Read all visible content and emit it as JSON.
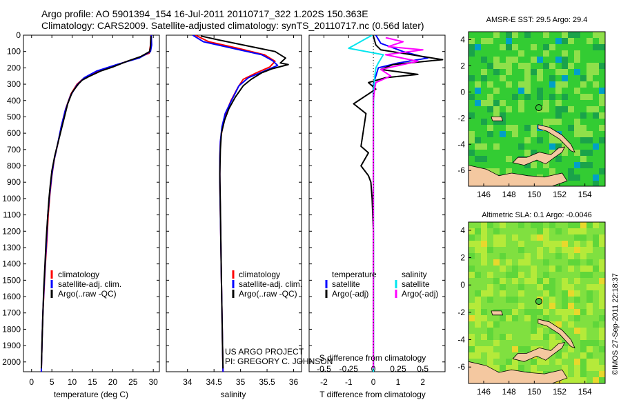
{
  "header": {
    "line1": "Argo profile: AO 5901394_154 16-Jul-2011 20110717_322 1.202S 150.363E",
    "line2": "Climatology: CARS2009. Satellite-adjusted climatology: synTS_20110717.nc (0.56d later)"
  },
  "colors": {
    "climatology": "#ff0000",
    "satellite": "#0000ff",
    "argo": "#000000",
    "sal_satellite": "#00e5ee",
    "sal_argo": "#ff00ff",
    "land": "#f4c8a0"
  },
  "chart_data": [
    {
      "type": "line",
      "title": "",
      "xlabel": "temperature (deg C)",
      "ylabel": "",
      "xlim": [
        -2,
        31.5
      ],
      "ylim": [
        2060,
        0
      ],
      "xticks": [
        "0",
        "5",
        "10",
        "15",
        "20",
        "25",
        "30"
      ],
      "xtick_values": [
        0,
        5,
        10,
        15,
        20,
        25,
        30
      ],
      "ytick_values": [
        0,
        100,
        200,
        300,
        400,
        500,
        600,
        700,
        800,
        900,
        1000,
        1100,
        1200,
        1300,
        1400,
        1500,
        1600,
        1700,
        1800,
        1900,
        2000
      ],
      "yticks": [
        "0",
        "100",
        "200",
        "300",
        "400",
        "500",
        "600",
        "700",
        "800",
        "900",
        "1000",
        "1100",
        "1200",
        "1300",
        "1400",
        "1500",
        "1600",
        "1700",
        "1800",
        "1900",
        "2000"
      ],
      "legend": [
        "climatology",
        "satellite-adj. clim.",
        "Argo(..raw -QC)"
      ],
      "series": [
        {
          "name": "climatology",
          "color": "#ff0000",
          "points": [
            [
              29.4,
              0
            ],
            [
              29.3,
              60
            ],
            [
              29.0,
              110
            ],
            [
              26,
              140
            ],
            [
              20,
              190
            ],
            [
              15,
              235
            ],
            [
              12.8,
              265
            ],
            [
              11.2,
              300
            ],
            [
              9.7,
              360
            ],
            [
              8.4,
              450
            ],
            [
              7.4,
              550
            ],
            [
              6.5,
              660
            ],
            [
              5.6,
              760
            ],
            [
              5.0,
              860
            ],
            [
              4.5,
              980
            ],
            [
              4.1,
              1100
            ],
            [
              3.8,
              1250
            ],
            [
              3.4,
              1400
            ],
            [
              3.1,
              1550
            ],
            [
              2.8,
              1700
            ],
            [
              2.6,
              1850
            ],
            [
              2.45,
              2000
            ],
            [
              2.4,
              2060
            ]
          ]
        },
        {
          "name": "satellite-adj. clim.",
          "color": "#0000ff",
          "points": [
            [
              29.5,
              0
            ],
            [
              29.6,
              60
            ],
            [
              29.3,
              100
            ],
            [
              26.5,
              140
            ],
            [
              21,
              180
            ],
            [
              16,
              220
            ],
            [
              13,
              260
            ],
            [
              11.2,
              305
            ],
            [
              9.6,
              370
            ],
            [
              8.3,
              460
            ],
            [
              7.3,
              560
            ],
            [
              6.4,
              670
            ],
            [
              5.5,
              770
            ],
            [
              4.9,
              870
            ],
            [
              4.4,
              990
            ],
            [
              4.0,
              1100
            ],
            [
              3.7,
              1250
            ],
            [
              3.35,
              1400
            ],
            [
              3.05,
              1550
            ],
            [
              2.8,
              1700
            ],
            [
              2.6,
              1850
            ],
            [
              2.45,
              2000
            ],
            [
              2.4,
              2060
            ]
          ]
        },
        {
          "name": "Argo(..raw -QC)",
          "color": "#000000",
          "points": [
            [
              29.4,
              5
            ],
            [
              29.3,
              70
            ],
            [
              29.1,
              100
            ],
            [
              27,
              130
            ],
            [
              23.5,
              160
            ],
            [
              20,
              195
            ],
            [
              17,
              220
            ],
            [
              14,
              255
            ],
            [
              12.5,
              275
            ],
            [
              11.5,
              300
            ],
            [
              10,
              350
            ],
            [
              8.9,
              420
            ],
            [
              8.2,
              490
            ],
            [
              7.3,
              580
            ],
            [
              6.5,
              660
            ],
            [
              5.7,
              740
            ],
            [
              5.0,
              830
            ],
            [
              4.6,
              920
            ],
            [
              4.3,
              1000
            ],
            [
              4.0,
              1100
            ],
            [
              3.6,
              1250
            ],
            [
              3.3,
              1400
            ],
            [
              3.0,
              1550
            ],
            [
              2.8,
              1700
            ],
            [
              2.6,
              1850
            ],
            [
              2.45,
              2000
            ],
            [
              2.4,
              2040
            ]
          ]
        }
      ]
    },
    {
      "type": "line",
      "title": "",
      "xlabel": "salinity",
      "ylabel": "",
      "xlim": [
        33.6,
        36.15
      ],
      "ylim": [
        2060,
        0
      ],
      "xticks": [
        "34",
        "34.5",
        "35",
        "35.5",
        "36"
      ],
      "xtick_values": [
        34,
        34.5,
        35,
        35.5,
        36
      ],
      "legend": [
        "climatology",
        "satellite-adj. clim.",
        "Argo(..raw -QC)"
      ],
      "series": [
        {
          "name": "climatology",
          "color": "#ff0000",
          "points": [
            [
              34.15,
              0
            ],
            [
              34.4,
              40
            ],
            [
              34.95,
              80
            ],
            [
              35.45,
              120
            ],
            [
              35.65,
              160
            ],
            [
              35.55,
              195
            ],
            [
              35.3,
              230
            ],
            [
              35.05,
              270
            ],
            [
              34.95,
              320
            ],
            [
              34.82,
              400
            ],
            [
              34.72,
              480
            ],
            [
              34.66,
              560
            ],
            [
              34.62,
              650
            ],
            [
              34.61,
              750
            ],
            [
              34.61,
              900
            ],
            [
              34.62,
              1100
            ],
            [
              34.63,
              1300
            ],
            [
              34.64,
              1500
            ],
            [
              34.65,
              1700
            ],
            [
              34.66,
              1900
            ],
            [
              34.67,
              2060
            ]
          ]
        },
        {
          "name": "satellite-adj. clim.",
          "color": "#0000ff",
          "points": [
            [
              34.1,
              0
            ],
            [
              34.3,
              40
            ],
            [
              34.85,
              80
            ],
            [
              35.4,
              120
            ],
            [
              35.6,
              155
            ],
            [
              35.7,
              185
            ],
            [
              35.45,
              220
            ],
            [
              35.15,
              260
            ],
            [
              34.97,
              310
            ],
            [
              34.83,
              400
            ],
            [
              34.71,
              480
            ],
            [
              34.65,
              560
            ],
            [
              34.62,
              650
            ],
            [
              34.61,
              750
            ],
            [
              34.61,
              900
            ],
            [
              34.62,
              1100
            ],
            [
              34.63,
              1300
            ],
            [
              34.64,
              1500
            ],
            [
              34.65,
              1700
            ],
            [
              34.66,
              1900
            ],
            [
              34.67,
              2060
            ]
          ]
        },
        {
          "name": "Argo(..raw -QC)",
          "color": "#000000",
          "points": [
            [
              34.25,
              5
            ],
            [
              34.6,
              30
            ],
            [
              35.2,
              70
            ],
            [
              35.65,
              100
            ],
            [
              35.85,
              140
            ],
            [
              35.75,
              170
            ],
            [
              35.9,
              180
            ],
            [
              35.6,
              205
            ],
            [
              35.4,
              230
            ],
            [
              35.2,
              270
            ],
            [
              35.05,
              310
            ],
            [
              34.9,
              380
            ],
            [
              34.78,
              450
            ],
            [
              34.7,
              520
            ],
            [
              34.64,
              600
            ],
            [
              34.62,
              700
            ],
            [
              34.61,
              850
            ],
            [
              34.62,
              1050
            ],
            [
              34.63,
              1300
            ],
            [
              34.64,
              1500
            ],
            [
              34.65,
              1700
            ],
            [
              34.66,
              1900
            ],
            [
              34.67,
              2040
            ]
          ]
        }
      ]
    },
    {
      "type": "line",
      "title": "",
      "xlabel": "T difference from climatology",
      "xlabel2": "S difference from climatology",
      "ylabel": "",
      "xlim": [
        -2.6,
        2.9
      ],
      "ylim": [
        2060,
        0
      ],
      "xticks": [
        "-2",
        "-1",
        "0",
        "1",
        "2"
      ],
      "xtick_values": [
        -2,
        -1,
        0,
        1,
        2
      ],
      "s_ticks": [
        "-0.5",
        "-0.25",
        "0",
        "0.25",
        "0.5"
      ],
      "s_tick_values": [
        -0.5,
        -0.25,
        0,
        0.25,
        0.5
      ],
      "legend_titles": [
        "temperature",
        "salinity"
      ],
      "legend": [
        "satellite",
        "Argo(-adj)",
        "satellite",
        "Argo(-adj)"
      ],
      "series": [
        {
          "name": "T satellite",
          "color": "#0000ff",
          "points": [
            [
              0.1,
              0
            ],
            [
              0.3,
              50
            ],
            [
              1.2,
              100
            ],
            [
              2.2,
              140
            ],
            [
              1.0,
              170
            ],
            [
              0.2,
              200
            ],
            [
              0.1,
              250
            ],
            [
              0,
              300
            ],
            [
              0,
              400
            ],
            [
              0,
              600
            ],
            [
              0,
              1000
            ],
            [
              0,
              1500
            ],
            [
              0,
              2060
            ]
          ]
        },
        {
          "name": "T Argo(-adj)",
          "color": "#000000",
          "points": [
            [
              0,
              5
            ],
            [
              0.1,
              60
            ],
            [
              0.3,
              90
            ],
            [
              2.8,
              150
            ],
            [
              0.8,
              180
            ],
            [
              0.3,
              210
            ],
            [
              1.8,
              240
            ],
            [
              0.5,
              260
            ],
            [
              -0.2,
              290
            ],
            [
              0.1,
              330
            ],
            [
              -0.8,
              420
            ],
            [
              -0.3,
              480
            ],
            [
              -0.4,
              580
            ],
            [
              -0.5,
              680
            ],
            [
              -0.2,
              720
            ],
            [
              -0.5,
              800
            ],
            [
              -0.2,
              860
            ],
            [
              -0.1,
              900
            ],
            [
              -0.05,
              1000
            ],
            [
              0,
              1200
            ],
            [
              0,
              1500
            ],
            [
              0,
              1800
            ],
            [
              0,
              2040
            ]
          ]
        },
        {
          "name": "S satellite",
          "color": "#00e5ee",
          "points": [
            [
              -0.05,
              0
            ],
            [
              -1.0,
              80
            ],
            [
              0.4,
              120
            ],
            [
              0.2,
              170
            ],
            [
              0.1,
              200
            ],
            [
              0.05,
              260
            ],
            [
              0.02,
              330
            ],
            [
              0.01,
              400
            ],
            [
              0,
              500
            ],
            [
              0,
              700
            ],
            [
              0,
              1000
            ],
            [
              0,
              1500
            ],
            [
              0,
              2060
            ]
          ]
        },
        {
          "name": "S Argo(-adj)",
          "color": "#ff00ff",
          "points": [
            [
              0.5,
              15
            ],
            [
              1.2,
              40
            ],
            [
              0.6,
              70
            ],
            [
              2.0,
              90
            ],
            [
              0.5,
              120
            ],
            [
              1.8,
              160
            ],
            [
              0.3,
              210
            ],
            [
              0.7,
              250
            ],
            [
              0.1,
              290
            ],
            [
              0.05,
              330
            ],
            [
              0,
              400
            ],
            [
              0,
              600
            ],
            [
              0,
              900
            ],
            [
              0,
              1500
            ],
            [
              0,
              2040
            ]
          ]
        }
      ]
    }
  ],
  "maps": [
    {
      "title": "AMSR-E SST: 29.5 Argo: 29.4",
      "xticks": [
        "146",
        "148",
        "150",
        "152",
        "154"
      ],
      "xtick_values": [
        146,
        148,
        150,
        152,
        154
      ],
      "yticks": [
        "4",
        "2",
        "0",
        "-2",
        "-4",
        "-6"
      ],
      "ytick_values": [
        4,
        2,
        0,
        -2,
        -4,
        -6
      ],
      "xlim": [
        144.8,
        155.6
      ],
      "ylim": [
        -7.2,
        4.6
      ],
      "float_position": [
        150.36,
        -1.2
      ]
    },
    {
      "title": "Altimetric SLA: 0.1 Argo: -0.0046",
      "xticks": [
        "146",
        "148",
        "150",
        "152",
        "154"
      ],
      "xtick_values": [
        146,
        148,
        150,
        152,
        154
      ],
      "yticks": [
        "4",
        "2",
        "0",
        "-2",
        "-4",
        "-6"
      ],
      "ytick_values": [
        4,
        2,
        0,
        -2,
        -4,
        -6
      ],
      "xlim": [
        144.8,
        155.6
      ],
      "ylim": [
        -7.2,
        4.6
      ],
      "float_position": [
        150.36,
        -1.2
      ]
    }
  ],
  "annotations": {
    "project": "US ARGO PROJECT",
    "pi": "PI: GREGORY C. JOHNSON",
    "watermark": "©IMOS 27-Sep-2011 22:18:37"
  }
}
